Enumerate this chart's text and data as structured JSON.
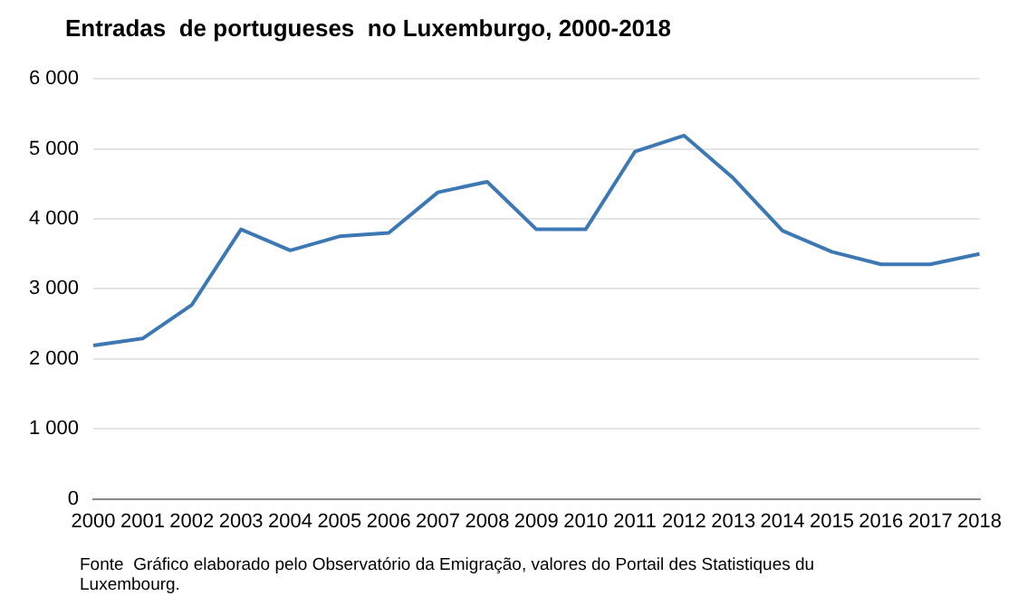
{
  "chart_data": {
    "type": "line",
    "title": "Entradas  de portugueses  no Luxemburgo, 2000-2018",
    "categories": [
      "2000",
      "2001",
      "2002",
      "2003",
      "2004",
      "2005",
      "2006",
      "2007",
      "2008",
      "2009",
      "2010",
      "2011",
      "2012",
      "2013",
      "2014",
      "2015",
      "2016",
      "2017",
      "2018"
    ],
    "series": [
      {
        "color": "#3c78b4",
        "values": [
          2190,
          2290,
          2770,
          3850,
          3550,
          3750,
          3800,
          4380,
          4530,
          3850,
          3850,
          4960,
          5190,
          4580,
          3830,
          3530,
          3350,
          3350,
          3500
        ]
      }
    ],
    "ylim": [
      0,
      6000
    ],
    "yticks": [
      {
        "value": 0,
        "label": "0"
      },
      {
        "value": 1000,
        "label": "1 000"
      },
      {
        "value": 2000,
        "label": "2 000"
      },
      {
        "value": 3000,
        "label": "3 000"
      },
      {
        "value": 4000,
        "label": "4 000"
      },
      {
        "value": 5000,
        "label": "5 000"
      },
      {
        "value": 6000,
        "label": "6 000"
      }
    ],
    "grid": "y",
    "legend": false,
    "marker": "none",
    "line_style": "solid",
    "annotations": [
      "Fonte  Gráfico elaborado pelo Observatório da Emigração, valores do Portail des Statistiques du Luxembourg."
    ]
  }
}
